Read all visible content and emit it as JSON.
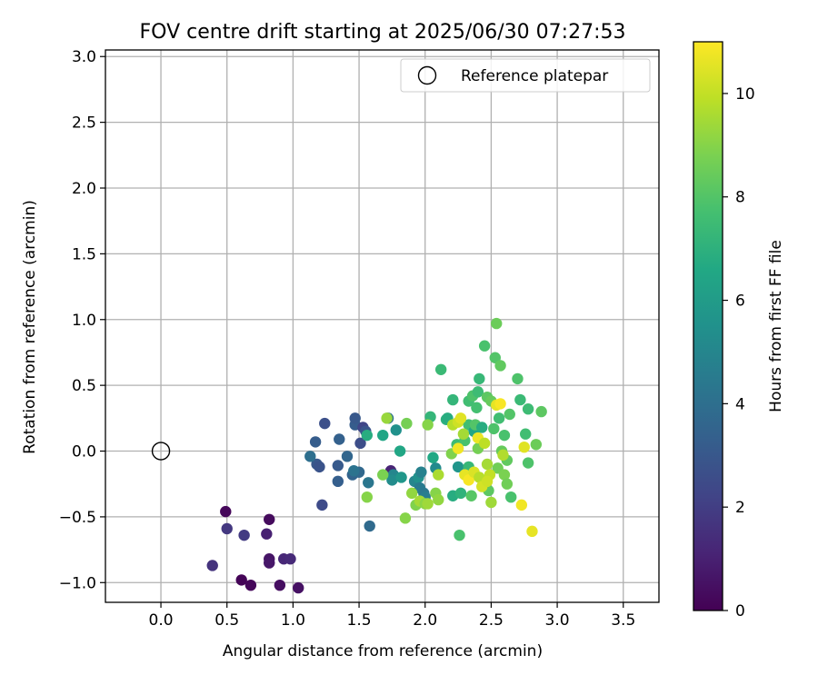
{
  "chart_data": {
    "type": "scatter",
    "title": "FOV centre drift starting at 2025/06/30 07:27:53",
    "xlabel": "Angular distance from reference (arcmin)",
    "ylabel": "Rotation from reference (arcmin)",
    "xlim": [
      -0.42,
      3.77
    ],
    "ylim": [
      -1.15,
      3.05
    ],
    "xticks": [
      0.0,
      0.5,
      1.0,
      1.5,
      2.0,
      2.5,
      3.0,
      3.5
    ],
    "xtick_labels": [
      "0.0",
      "0.5",
      "1.0",
      "1.5",
      "2.0",
      "2.5",
      "3.0",
      "3.5"
    ],
    "yticks": [
      -1.0,
      -0.5,
      0.0,
      0.5,
      1.0,
      1.5,
      2.0,
      2.5,
      3.0
    ],
    "ytick_labels": [
      "−1.0",
      "−0.5",
      "0.0",
      "0.5",
      "1.0",
      "1.5",
      "2.0",
      "2.5",
      "3.0"
    ],
    "grid": true,
    "legend": {
      "placement": "top-right",
      "entries": [
        "Reference platepar"
      ]
    },
    "reference_point": {
      "x": 0.0,
      "y": 0.0,
      "label": "Reference platepar"
    },
    "colorbar": {
      "label": "Hours from first FF file",
      "min": 0,
      "max": 11,
      "ticks": [
        0,
        2,
        4,
        6,
        8,
        10
      ],
      "tick_labels": [
        "0",
        "2",
        "4",
        "6",
        "8",
        "10"
      ],
      "colormap": "viridis"
    },
    "points": [
      {
        "x": 0.49,
        "y": -0.46,
        "h": 0.2
      },
      {
        "x": 0.61,
        "y": -0.98,
        "h": 0.1
      },
      {
        "x": 0.68,
        "y": -1.02,
        "h": 0.2
      },
      {
        "x": 0.82,
        "y": -0.52,
        "h": 0.3
      },
      {
        "x": 0.9,
        "y": -1.02,
        "h": 0.4
      },
      {
        "x": 1.04,
        "y": -1.04,
        "h": 0.5
      },
      {
        "x": 0.82,
        "y": -0.82,
        "h": 0.6
      },
      {
        "x": 0.82,
        "y": -0.85,
        "h": 0.7
      },
      {
        "x": 0.8,
        "y": -0.63,
        "h": 1.0
      },
      {
        "x": 0.93,
        "y": -0.82,
        "h": 1.2
      },
      {
        "x": 0.98,
        "y": -0.82,
        "h": 1.3
      },
      {
        "x": 0.39,
        "y": -0.87,
        "h": 1.6
      },
      {
        "x": 0.5,
        "y": -0.59,
        "h": 1.8
      },
      {
        "x": 0.63,
        "y": -0.64,
        "h": 1.9
      },
      {
        "x": 1.22,
        "y": -0.41,
        "h": 2.5
      },
      {
        "x": 1.18,
        "y": -0.1,
        "h": 3.0
      },
      {
        "x": 1.2,
        "y": -0.12,
        "h": 2.8
      },
      {
        "x": 1.17,
        "y": 0.07,
        "h": 3.2
      },
      {
        "x": 1.24,
        "y": 0.21,
        "h": 2.7
      },
      {
        "x": 1.34,
        "y": -0.23,
        "h": 3.3
      },
      {
        "x": 1.34,
        "y": -0.11,
        "h": 3.1
      },
      {
        "x": 1.35,
        "y": 0.09,
        "h": 3.4
      },
      {
        "x": 1.41,
        "y": -0.04,
        "h": 3.6
      },
      {
        "x": 1.45,
        "y": -0.18,
        "h": 3.5
      },
      {
        "x": 1.47,
        "y": 0.2,
        "h": 3.2
      },
      {
        "x": 1.47,
        "y": 0.25,
        "h": 3.0
      },
      {
        "x": 1.5,
        "y": -0.16,
        "h": 3.7
      },
      {
        "x": 1.51,
        "y": 0.06,
        "h": 2.6
      },
      {
        "x": 1.53,
        "y": 0.18,
        "h": 2.3
      },
      {
        "x": 1.55,
        "y": 0.15,
        "h": 2.9
      },
      {
        "x": 1.57,
        "y": -0.24,
        "h": 4.3
      },
      {
        "x": 1.58,
        "y": -0.57,
        "h": 3.8
      },
      {
        "x": 1.13,
        "y": -0.04,
        "h": 4.0
      },
      {
        "x": 1.46,
        "y": -0.15,
        "h": 4.2
      },
      {
        "x": 1.56,
        "y": 0.12,
        "h": 6.8
      },
      {
        "x": 1.68,
        "y": 0.12,
        "h": 6.5
      },
      {
        "x": 1.72,
        "y": 0.25,
        "h": 4.1
      },
      {
        "x": 1.74,
        "y": -0.15,
        "h": 1.1
      },
      {
        "x": 1.76,
        "y": -0.18,
        "h": 5.0
      },
      {
        "x": 1.75,
        "y": -0.22,
        "h": 5.3
      },
      {
        "x": 1.78,
        "y": 0.16,
        "h": 5.5
      },
      {
        "x": 1.82,
        "y": -0.2,
        "h": 5.8
      },
      {
        "x": 1.81,
        "y": 0.0,
        "h": 6.5
      },
      {
        "x": 1.92,
        "y": -0.23,
        "h": 5.0
      },
      {
        "x": 1.95,
        "y": -0.2,
        "h": 5.5
      },
      {
        "x": 1.97,
        "y": -0.16,
        "h": 4.8
      },
      {
        "x": 1.96,
        "y": -0.28,
        "h": 4.5
      },
      {
        "x": 1.99,
        "y": -0.32,
        "h": 4.4
      },
      {
        "x": 2.0,
        "y": -0.35,
        "h": 4.6
      },
      {
        "x": 2.04,
        "y": 0.26,
        "h": 7.2
      },
      {
        "x": 2.02,
        "y": 0.2,
        "h": 9.0
      },
      {
        "x": 2.06,
        "y": -0.05,
        "h": 6.6
      },
      {
        "x": 2.08,
        "y": -0.13,
        "h": 5.2
      },
      {
        "x": 2.12,
        "y": 0.62,
        "h": 7.4
      },
      {
        "x": 2.16,
        "y": 0.24,
        "h": 7.0
      },
      {
        "x": 2.17,
        "y": 0.25,
        "h": 6.8
      },
      {
        "x": 2.21,
        "y": 0.39,
        "h": 7.2
      },
      {
        "x": 2.21,
        "y": -0.34,
        "h": 6.8
      },
      {
        "x": 2.24,
        "y": 0.05,
        "h": 7.5
      },
      {
        "x": 2.25,
        "y": -0.12,
        "h": 5.7
      },
      {
        "x": 2.26,
        "y": -0.64,
        "h": 7.8
      },
      {
        "x": 2.3,
        "y": 0.08,
        "h": 7.8
      },
      {
        "x": 2.33,
        "y": 0.2,
        "h": 7.6
      },
      {
        "x": 2.33,
        "y": 0.38,
        "h": 7.6
      },
      {
        "x": 2.36,
        "y": 0.42,
        "h": 7.9
      },
      {
        "x": 2.37,
        "y": 0.15,
        "h": 6.5
      },
      {
        "x": 2.38,
        "y": 0.2,
        "h": 8.0
      },
      {
        "x": 2.39,
        "y": 0.33,
        "h": 7.7
      },
      {
        "x": 2.4,
        "y": 0.45,
        "h": 7.5
      },
      {
        "x": 2.41,
        "y": 0.55,
        "h": 7.3
      },
      {
        "x": 2.43,
        "y": 0.18,
        "h": 6.8
      },
      {
        "x": 2.45,
        "y": 0.8,
        "h": 7.8
      },
      {
        "x": 2.47,
        "y": 0.41,
        "h": 8.2
      },
      {
        "x": 2.5,
        "y": 0.38,
        "h": 8.4
      },
      {
        "x": 2.52,
        "y": 0.17,
        "h": 7.9
      },
      {
        "x": 2.53,
        "y": 0.71,
        "h": 8.0
      },
      {
        "x": 2.54,
        "y": 0.97,
        "h": 8.5
      },
      {
        "x": 2.56,
        "y": 0.25,
        "h": 7.6
      },
      {
        "x": 2.57,
        "y": 0.65,
        "h": 8.3
      },
      {
        "x": 2.58,
        "y": 0.0,
        "h": 8.4
      },
      {
        "x": 2.6,
        "y": 0.12,
        "h": 7.8
      },
      {
        "x": 2.62,
        "y": -0.07,
        "h": 8.3
      },
      {
        "x": 2.64,
        "y": 0.28,
        "h": 8.0
      },
      {
        "x": 2.65,
        "y": -0.35,
        "h": 7.8
      },
      {
        "x": 2.7,
        "y": 0.55,
        "h": 7.9
      },
      {
        "x": 2.72,
        "y": 0.39,
        "h": 7.4
      },
      {
        "x": 2.76,
        "y": 0.13,
        "h": 7.6
      },
      {
        "x": 2.78,
        "y": -0.09,
        "h": 7.9
      },
      {
        "x": 2.78,
        "y": 0.32,
        "h": 7.5
      },
      {
        "x": 2.84,
        "y": 0.05,
        "h": 8.5
      },
      {
        "x": 2.88,
        "y": 0.3,
        "h": 8.2
      },
      {
        "x": 2.27,
        "y": -0.32,
        "h": 7.1
      },
      {
        "x": 2.33,
        "y": -0.12,
        "h": 7.3
      },
      {
        "x": 2.35,
        "y": -0.34,
        "h": 8.1
      },
      {
        "x": 2.4,
        "y": 0.02,
        "h": 8.7
      },
      {
        "x": 2.48,
        "y": -0.3,
        "h": 8.2
      },
      {
        "x": 2.55,
        "y": -0.13,
        "h": 8.6
      },
      {
        "x": 2.6,
        "y": -0.18,
        "h": 8.8
      },
      {
        "x": 2.62,
        "y": -0.25,
        "h": 8.6
      },
      {
        "x": 1.56,
        "y": -0.35,
        "h": 9.0
      },
      {
        "x": 1.68,
        "y": -0.18,
        "h": 8.8
      },
      {
        "x": 1.71,
        "y": 0.25,
        "h": 9.3
      },
      {
        "x": 1.85,
        "y": -0.51,
        "h": 9.0
      },
      {
        "x": 1.86,
        "y": 0.21,
        "h": 8.7
      },
      {
        "x": 1.9,
        "y": -0.32,
        "h": 9.2
      },
      {
        "x": 1.93,
        "y": -0.41,
        "h": 8.9
      },
      {
        "x": 1.96,
        "y": -0.38,
        "h": 9.5
      },
      {
        "x": 2.0,
        "y": -0.4,
        "h": 9.1
      },
      {
        "x": 2.02,
        "y": -0.4,
        "h": 9.4
      },
      {
        "x": 2.08,
        "y": -0.32,
        "h": 9.0
      },
      {
        "x": 2.1,
        "y": -0.37,
        "h": 9.2
      },
      {
        "x": 2.1,
        "y": -0.18,
        "h": 9.6
      },
      {
        "x": 2.2,
        "y": -0.02,
        "h": 8.9
      },
      {
        "x": 2.21,
        "y": 0.2,
        "h": 9.8
      },
      {
        "x": 2.25,
        "y": 0.22,
        "h": 10.2
      },
      {
        "x": 2.27,
        "y": 0.25,
        "h": 10.5
      },
      {
        "x": 2.29,
        "y": 0.13,
        "h": 9.5
      },
      {
        "x": 2.25,
        "y": 0.02,
        "h": 10.8
      },
      {
        "x": 2.3,
        "y": -0.18,
        "h": 10.6
      },
      {
        "x": 2.33,
        "y": -0.22,
        "h": 10.9
      },
      {
        "x": 2.37,
        "y": -0.16,
        "h": 10.4
      },
      {
        "x": 2.4,
        "y": 0.1,
        "h": 10.7
      },
      {
        "x": 2.41,
        "y": -0.2,
        "h": 9.8
      },
      {
        "x": 2.43,
        "y": -0.27,
        "h": 10.3
      },
      {
        "x": 2.45,
        "y": 0.06,
        "h": 9.9
      },
      {
        "x": 2.47,
        "y": -0.1,
        "h": 9.5
      },
      {
        "x": 2.49,
        "y": -0.18,
        "h": 10.0
      },
      {
        "x": 2.5,
        "y": -0.39,
        "h": 9.4
      },
      {
        "x": 2.54,
        "y": 0.35,
        "h": 10.6
      },
      {
        "x": 2.57,
        "y": 0.36,
        "h": 10.9
      },
      {
        "x": 2.59,
        "y": -0.03,
        "h": 9.7
      },
      {
        "x": 2.73,
        "y": -0.41,
        "h": 10.8
      },
      {
        "x": 2.75,
        "y": 0.03,
        "h": 10.5
      },
      {
        "x": 2.81,
        "y": -0.61,
        "h": 10.6
      },
      {
        "x": 2.47,
        "y": -0.23,
        "h": 10.2
      }
    ]
  }
}
